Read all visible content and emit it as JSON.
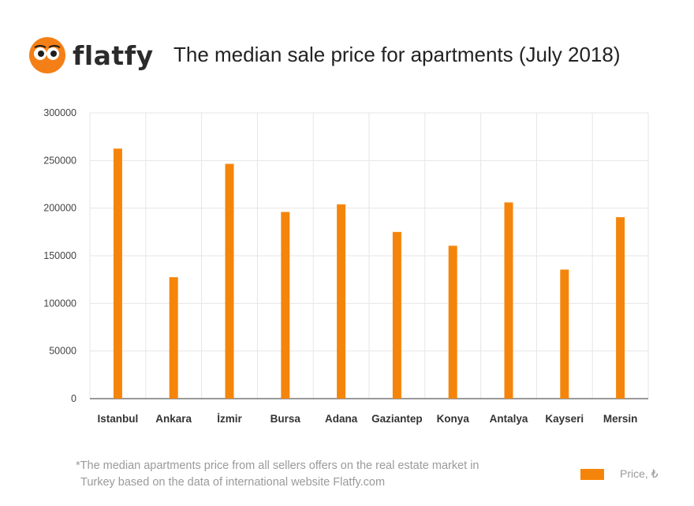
{
  "brand": {
    "name": "flatfy",
    "accent": "#f57f17"
  },
  "header": {
    "title": "The median sale price for apartments (July 2018)"
  },
  "footnote": {
    "line1": "*The median apartments price from all sellers offers on the real estate market in",
    "line2": "Turkey based on the data of international website Flatfy.com"
  },
  "chart_data": {
    "type": "bar",
    "title": "The median sale price for apartments (July 2018)",
    "categories": [
      "Istanbul",
      "Ankara",
      "İzmir",
      "Bursa",
      "Adana",
      "Gaziantep",
      "Konya",
      "Antalya",
      "Kayseri",
      "Mersin"
    ],
    "series": [
      {
        "name": "Price, ₺",
        "color": "#f5850a",
        "values": [
          262500,
          127500,
          246500,
          196000,
          204000,
          175000,
          160500,
          206000,
          135500,
          190500
        ]
      }
    ],
    "xlabel": "",
    "ylabel": "",
    "ylim": [
      0,
      300000
    ],
    "yticks": [
      0,
      50000,
      100000,
      150000,
      200000,
      250000,
      300000
    ],
    "grid": true,
    "legend": "bottom-right"
  }
}
